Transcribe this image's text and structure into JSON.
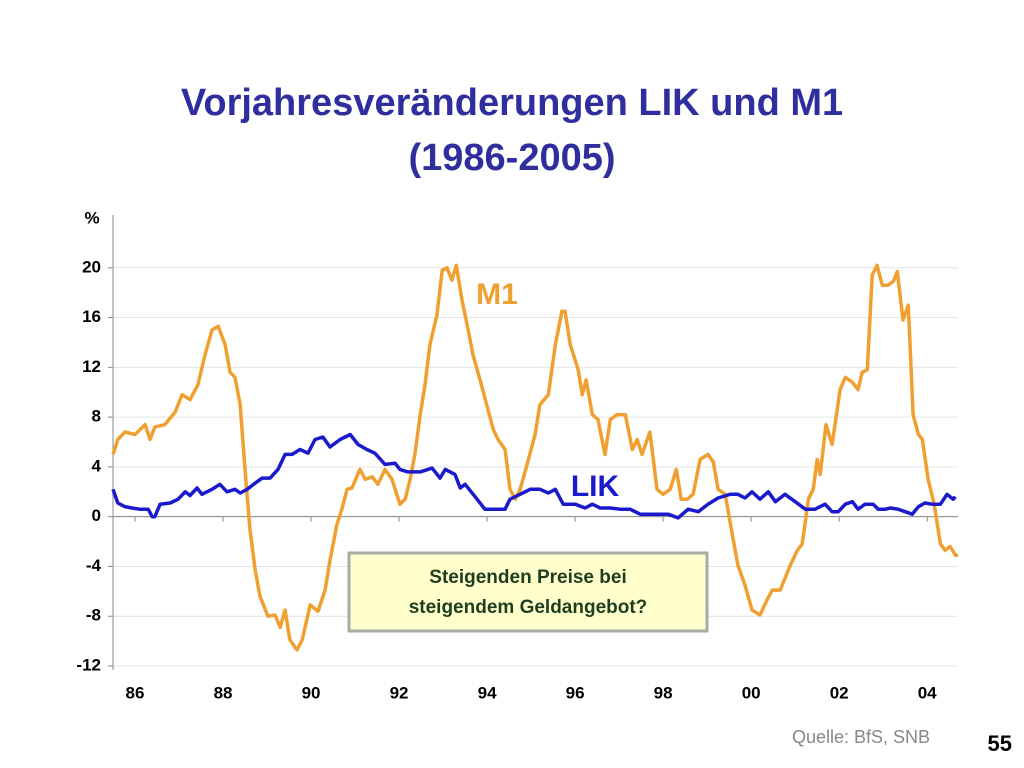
{
  "chart_data": {
    "type": "line",
    "title": [
      "Vorjahresveränderungen LIK und M1",
      "(1986-2005)"
    ],
    "y_label": "%",
    "xlim": [
      1986,
      2005.2
    ],
    "ylim": [
      -12,
      24
    ],
    "yticks": [
      -12,
      -8,
      -4,
      0,
      4,
      8,
      12,
      16,
      20
    ],
    "xticks": [
      {
        "value": 1986.5,
        "label": "86"
      },
      {
        "value": 1988.5,
        "label": "88"
      },
      {
        "value": 1990.5,
        "label": "90"
      },
      {
        "value": 1992.5,
        "label": "92"
      },
      {
        "value": 1994.5,
        "label": "94"
      },
      {
        "value": 1996.5,
        "label": "96"
      },
      {
        "value": 1998.5,
        "label": "98"
      },
      {
        "value": 2000.5,
        "label": "00"
      },
      {
        "value": 2002.5,
        "label": "02"
      },
      {
        "value": 2004.5,
        "label": "04"
      }
    ],
    "grid": true,
    "series": [
      {
        "name": "M1",
        "color": "#f0a030",
        "x": [
          1986.0,
          1986.11,
          1986.27,
          1986.5,
          1986.73,
          1986.84,
          1986.95,
          1987.18,
          1987.41,
          1987.57,
          1987.75,
          1987.93,
          1988.09,
          1988.25,
          1988.39,
          1988.55,
          1988.66,
          1988.77,
          1988.89,
          1989.0,
          1989.11,
          1989.23,
          1989.34,
          1989.52,
          1989.68,
          1989.8,
          1989.91,
          1990.02,
          1990.18,
          1990.3,
          1990.48,
          1990.66,
          1990.82,
          1990.93,
          1991.09,
          1991.2,
          1991.32,
          1991.43,
          1991.61,
          1991.73,
          1991.89,
          1992.02,
          1992.18,
          1992.34,
          1992.52,
          1992.64,
          1992.75,
          1992.86,
          1992.98,
          1993.09,
          1993.2,
          1993.36,
          1993.48,
          1993.59,
          1993.7,
          1993.8,
          1993.93,
          1994.07,
          1994.18,
          1994.34,
          1994.52,
          1994.64,
          1994.75,
          1994.91,
          1995.02,
          1995.14,
          1995.25,
          1995.41,
          1995.59,
          1995.7,
          1995.89,
          1996.05,
          1996.2,
          1996.27,
          1996.39,
          1996.57,
          1996.66,
          1996.75,
          1996.89,
          1997.02,
          1997.18,
          1997.3,
          1997.45,
          1997.64,
          1997.8,
          1997.91,
          1998.02,
          1998.2,
          1998.36,
          1998.5,
          1998.66,
          1998.8,
          1998.91,
          1999.05,
          1999.18,
          1999.34,
          1999.52,
          1999.64,
          1999.75,
          1999.91,
          2000.09,
          2000.2,
          2000.36,
          2000.52,
          2000.7,
          2000.86,
          2000.98,
          2001.16,
          2001.39,
          2001.55,
          2001.66,
          2001.8,
          2001.91,
          2002.0,
          2002.07,
          2002.2,
          2002.34,
          2002.52,
          2002.64,
          2002.8,
          2002.93,
          2003.02,
          2003.14,
          2003.25,
          2003.36,
          2003.48,
          2003.61,
          2003.73,
          2003.82,
          2003.95,
          2004.07,
          2004.18,
          2004.3,
          2004.39,
          2004.52,
          2004.66,
          2004.8,
          2004.91,
          2005.02,
          2005.14,
          2005.2
        ],
        "values": [
          5.0,
          6.2,
          6.8,
          6.6,
          7.4,
          6.2,
          7.2,
          7.4,
          8.4,
          9.8,
          9.4,
          10.6,
          13.0,
          15.0,
          15.3,
          13.8,
          11.6,
          11.2,
          9.0,
          3.8,
          -1.0,
          -4.3,
          -6.4,
          -8.0,
          -7.9,
          -8.9,
          -7.5,
          -9.9,
          -10.7,
          -9.9,
          -7.1,
          -7.6,
          -5.9,
          -3.5,
          -0.6,
          0.6,
          2.2,
          2.3,
          3.8,
          3.0,
          3.2,
          2.6,
          3.8,
          3.0,
          1.0,
          1.4,
          3.0,
          5.0,
          8.2,
          10.6,
          13.8,
          16.2,
          19.8,
          20.0,
          19.0,
          20.2,
          17.4,
          15.0,
          13.0,
          11.0,
          8.6,
          7.0,
          6.2,
          5.4,
          2.2,
          1.4,
          2.2,
          4.2,
          6.6,
          9.0,
          9.8,
          13.8,
          16.5,
          16.5,
          13.8,
          11.8,
          9.8,
          11.0,
          8.2,
          7.8,
          5.0,
          7.8,
          8.2,
          8.2,
          5.4,
          6.2,
          5.0,
          6.8,
          2.2,
          1.8,
          2.2,
          3.8,
          1.4,
          1.4,
          1.8,
          4.6,
          5.0,
          4.4,
          2.2,
          1.8,
          -1.8,
          -3.9,
          -5.5,
          -7.5,
          -7.9,
          -6.7,
          -5.9,
          -5.9,
          -3.9,
          -2.7,
          -2.2,
          1.4,
          2.2,
          4.6,
          3.4,
          7.4,
          5.8,
          10.2,
          11.2,
          10.8,
          10.2,
          11.6,
          11.8,
          19.4,
          20.2,
          18.6,
          18.6,
          18.9,
          19.7,
          15.8,
          17.0,
          8.2,
          6.6,
          6.2,
          3.0,
          1.0,
          -2.2,
          -2.7,
          -2.4,
          -3.1,
          -3.1
        ]
      },
      {
        "name": "LIK",
        "color": "#1a1acc",
        "x": [
          1986.0,
          1986.11,
          1986.27,
          1986.43,
          1986.61,
          1986.8,
          1986.89,
          1986.95,
          1987.07,
          1987.3,
          1987.48,
          1987.64,
          1987.75,
          1987.91,
          1988.02,
          1988.25,
          1988.43,
          1988.59,
          1988.77,
          1988.89,
          1989.05,
          1989.23,
          1989.39,
          1989.57,
          1989.75,
          1989.91,
          1990.07,
          1990.25,
          1990.43,
          1990.59,
          1990.77,
          1990.93,
          1991.16,
          1991.39,
          1991.57,
          1991.77,
          1991.95,
          1992.18,
          1992.41,
          1992.52,
          1992.7,
          1992.98,
          1993.25,
          1993.43,
          1993.55,
          1993.77,
          1993.89,
          1994.0,
          1994.23,
          1994.45,
          1994.68,
          1994.91,
          1995.02,
          1995.25,
          1995.48,
          1995.7,
          1995.89,
          1996.05,
          1996.23,
          1996.5,
          1996.73,
          1996.89,
          1997.07,
          1997.3,
          1997.52,
          1997.75,
          1997.98,
          1998.32,
          1998.61,
          1998.84,
          1999.07,
          1999.3,
          1999.52,
          1999.75,
          2000.02,
          2000.2,
          2000.36,
          2000.52,
          2000.7,
          2000.89,
          2001.05,
          2001.27,
          2001.5,
          2001.73,
          2001.95,
          2002.18,
          2002.34,
          2002.48,
          2002.64,
          2002.8,
          2002.93,
          2003.09,
          2003.27,
          2003.39,
          2003.55,
          2003.66,
          2003.84,
          2004.0,
          2004.16,
          2004.3,
          2004.45,
          2004.61,
          2004.8,
          2004.95,
          2005.09,
          2005.14
        ],
        "values": [
          2.2,
          1.1,
          0.8,
          0.7,
          0.6,
          0.6,
          0.0,
          0.0,
          1.0,
          1.1,
          1.4,
          2.0,
          1.7,
          2.3,
          1.8,
          2.2,
          2.6,
          2.0,
          2.2,
          1.9,
          2.2,
          2.7,
          3.1,
          3.1,
          3.8,
          5.0,
          5.0,
          5.4,
          5.1,
          6.2,
          6.4,
          5.6,
          6.2,
          6.6,
          5.8,
          5.4,
          5.1,
          4.2,
          4.3,
          3.8,
          3.6,
          3.6,
          3.9,
          3.1,
          3.8,
          3.4,
          2.3,
          2.6,
          1.6,
          0.6,
          0.6,
          0.6,
          1.4,
          1.8,
          2.2,
          2.2,
          1.9,
          2.2,
          1.0,
          1.0,
          0.7,
          1.0,
          0.7,
          0.7,
          0.6,
          0.6,
          0.2,
          0.2,
          0.2,
          -0.1,
          0.6,
          0.4,
          1.0,
          1.5,
          1.8,
          1.8,
          1.5,
          2.0,
          1.4,
          2.0,
          1.2,
          1.8,
          1.2,
          0.6,
          0.6,
          1.0,
          0.4,
          0.4,
          1.0,
          1.2,
          0.6,
          1.0,
          1.0,
          0.6,
          0.6,
          0.7,
          0.6,
          0.4,
          0.2,
          0.8,
          1.1,
          1.0,
          1.0,
          1.8,
          1.4,
          1.6
        ]
      }
    ],
    "annotation": [
      "Steigenden Preise bei",
      "steigendem Geldangebot?"
    ],
    "source": "Quelle: BfS, SNB",
    "page_number": "55"
  }
}
